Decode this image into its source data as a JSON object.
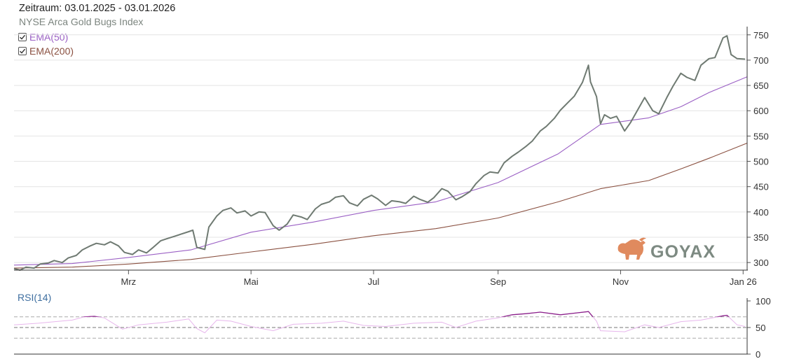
{
  "header": {
    "period": "Zeitraum: 03.01.2025 - 03.01.2026",
    "index_name": "NYSE Arca Gold Bugs Index"
  },
  "legend": [
    {
      "label": "EMA(50)",
      "checked": true,
      "color": "#9a5fc4"
    },
    {
      "label": "EMA(200)",
      "checked": true,
      "color": "#8a5040"
    }
  ],
  "logo": {
    "text": "GOYAX"
  },
  "colors": {
    "price": "#6f7a72",
    "ema50": "#9a5fc4",
    "ema200": "#8a5040",
    "rsi": "#e7b6ec",
    "rsi_strong": "#8a1f8a",
    "logo_text": "#7d8a82",
    "logo_bull": "#e08a5e"
  },
  "chart_data": [
    {
      "type": "line",
      "title": "NYSE Arca Gold Bugs Index",
      "x_range": [
        "2025-01-03",
        "2026-01-03"
      ],
      "x_ticks": [
        {
          "date": "2025-03-01",
          "label": "Mrz"
        },
        {
          "date": "2025-05-01",
          "label": "Mai"
        },
        {
          "date": "2025-07-01",
          "label": "Jul"
        },
        {
          "date": "2025-09-01",
          "label": "Sep"
        },
        {
          "date": "2025-11-01",
          "label": "Nov"
        },
        {
          "date": "2026-01-01",
          "label": "Jan 26"
        }
      ],
      "ylim": [
        285,
        758
      ],
      "y_ticks": [
        300,
        350,
        400,
        450,
        500,
        550,
        600,
        650,
        700,
        750
      ],
      "grid": true,
      "legend": "top-left",
      "series": [
        {
          "name": "NYSE Arca Gold Bugs Index",
          "points": [
            [
              "2025-01-03",
              288
            ],
            [
              "2025-01-06",
              285
            ],
            [
              "2025-01-09",
              291
            ],
            [
              "2025-01-13",
              289
            ],
            [
              "2025-01-16",
              297
            ],
            [
              "2025-01-20",
              299
            ],
            [
              "2025-01-23",
              304
            ],
            [
              "2025-01-27",
              300
            ],
            [
              "2025-01-30",
              309
            ],
            [
              "2025-02-03",
              314
            ],
            [
              "2025-02-06",
              325
            ],
            [
              "2025-02-10",
              333
            ],
            [
              "2025-02-13",
              338
            ],
            [
              "2025-02-17",
              335
            ],
            [
              "2025-02-20",
              341
            ],
            [
              "2025-02-24",
              333
            ],
            [
              "2025-02-27",
              320
            ],
            [
              "2025-03-03",
              316
            ],
            [
              "2025-03-06",
              325
            ],
            [
              "2025-03-10",
              319
            ],
            [
              "2025-03-13",
              329
            ],
            [
              "2025-03-17",
              343
            ],
            [
              "2025-03-20",
              347
            ],
            [
              "2025-03-24",
              352
            ],
            [
              "2025-03-27",
              356
            ],
            [
              "2025-03-31",
              361
            ],
            [
              "2025-04-02",
              364
            ],
            [
              "2025-04-04",
              330
            ],
            [
              "2025-04-08",
              326
            ],
            [
              "2025-04-10",
              370
            ],
            [
              "2025-04-14",
              392
            ],
            [
              "2025-04-17",
              403
            ],
            [
              "2025-04-21",
              408
            ],
            [
              "2025-04-24",
              398
            ],
            [
              "2025-04-28",
              402
            ],
            [
              "2025-05-01",
              392
            ],
            [
              "2025-05-05",
              400
            ],
            [
              "2025-05-08",
              399
            ],
            [
              "2025-05-12",
              373
            ],
            [
              "2025-05-15",
              364
            ],
            [
              "2025-05-19",
              376
            ],
            [
              "2025-05-22",
              394
            ],
            [
              "2025-05-26",
              390
            ],
            [
              "2025-05-29",
              385
            ],
            [
              "2025-06-02",
              406
            ],
            [
              "2025-06-05",
              415
            ],
            [
              "2025-06-09",
              420
            ],
            [
              "2025-06-12",
              429
            ],
            [
              "2025-06-16",
              432
            ],
            [
              "2025-06-19",
              418
            ],
            [
              "2025-06-23",
              412
            ],
            [
              "2025-06-26",
              425
            ],
            [
              "2025-06-30",
              433
            ],
            [
              "2025-07-03",
              426
            ],
            [
              "2025-07-07",
              413
            ],
            [
              "2025-07-10",
              422
            ],
            [
              "2025-07-14",
              420
            ],
            [
              "2025-07-17",
              417
            ],
            [
              "2025-07-21",
              431
            ],
            [
              "2025-07-24",
              425
            ],
            [
              "2025-07-28",
              419
            ],
            [
              "2025-07-31",
              428
            ],
            [
              "2025-08-04",
              446
            ],
            [
              "2025-08-07",
              441
            ],
            [
              "2025-08-11",
              424
            ],
            [
              "2025-08-14",
              430
            ],
            [
              "2025-08-18",
              440
            ],
            [
              "2025-08-21",
              456
            ],
            [
              "2025-08-25",
              472
            ],
            [
              "2025-08-28",
              479
            ],
            [
              "2025-09-01",
              477
            ],
            [
              "2025-09-04",
              497
            ],
            [
              "2025-09-08",
              510
            ],
            [
              "2025-09-11",
              518
            ],
            [
              "2025-09-15",
              530
            ],
            [
              "2025-09-18",
              540
            ],
            [
              "2025-09-22",
              560
            ],
            [
              "2025-09-25",
              569
            ],
            [
              "2025-09-29",
              585
            ],
            [
              "2025-10-02",
              601
            ],
            [
              "2025-10-06",
              617
            ],
            [
              "2025-10-09",
              629
            ],
            [
              "2025-10-13",
              656
            ],
            [
              "2025-10-16",
              690
            ],
            [
              "2025-10-17",
              657
            ],
            [
              "2025-10-20",
              628
            ],
            [
              "2025-10-22",
              574
            ],
            [
              "2025-10-24",
              592
            ],
            [
              "2025-10-27",
              585
            ],
            [
              "2025-10-30",
              589
            ],
            [
              "2025-11-03",
              560
            ],
            [
              "2025-11-06",
              577
            ],
            [
              "2025-11-10",
              605
            ],
            [
              "2025-11-13",
              626
            ],
            [
              "2025-11-17",
              600
            ],
            [
              "2025-11-20",
              594
            ],
            [
              "2025-11-24",
              626
            ],
            [
              "2025-11-27",
              648
            ],
            [
              "2025-12-01",
              674
            ],
            [
              "2025-12-04",
              666
            ],
            [
              "2025-12-08",
              660
            ],
            [
              "2025-12-11",
              690
            ],
            [
              "2025-12-15",
              703
            ],
            [
              "2025-12-18",
              705
            ],
            [
              "2025-12-22",
              744
            ],
            [
              "2025-12-24",
              748
            ],
            [
              "2025-12-26",
              711
            ],
            [
              "2025-12-29",
              703
            ],
            [
              "2026-01-02",
              702
            ]
          ]
        },
        {
          "name": "EMA(50)",
          "points": [
            [
              "2025-01-03",
              295
            ],
            [
              "2025-02-01",
              298
            ],
            [
              "2025-03-01",
              310
            ],
            [
              "2025-04-01",
              325
            ],
            [
              "2025-05-01",
              360
            ],
            [
              "2025-06-01",
              380
            ],
            [
              "2025-07-01",
              403
            ],
            [
              "2025-08-01",
              420
            ],
            [
              "2025-09-01",
              458
            ],
            [
              "2025-10-01",
              515
            ],
            [
              "2025-10-22",
              573
            ],
            [
              "2025-11-15",
              586
            ],
            [
              "2025-12-01",
              608
            ],
            [
              "2025-12-15",
              636
            ],
            [
              "2026-01-03",
              667
            ]
          ]
        },
        {
          "name": "EMA(200)",
          "points": [
            [
              "2025-01-03",
              289
            ],
            [
              "2025-02-01",
              291
            ],
            [
              "2025-03-01",
              297
            ],
            [
              "2025-04-01",
              306
            ],
            [
              "2025-05-01",
              321
            ],
            [
              "2025-06-01",
              336
            ],
            [
              "2025-07-01",
              353
            ],
            [
              "2025-08-01",
              367
            ],
            [
              "2025-09-01",
              388
            ],
            [
              "2025-10-01",
              420
            ],
            [
              "2025-10-22",
              446
            ],
            [
              "2025-11-15",
              462
            ],
            [
              "2025-12-01",
              485
            ],
            [
              "2025-12-15",
              506
            ],
            [
              "2026-01-03",
              536
            ]
          ]
        }
      ]
    },
    {
      "type": "line",
      "title": "RSI(14)",
      "ylim": [
        0,
        100
      ],
      "y_ticks": [
        0,
        50,
        100
      ],
      "reference_lines": [
        30,
        50,
        70
      ],
      "series": [
        {
          "name": "RSI(14)",
          "points": [
            [
              "2025-01-03",
              55
            ],
            [
              "2025-01-15",
              58
            ],
            [
              "2025-02-01",
              64
            ],
            [
              "2025-02-07",
              70
            ],
            [
              "2025-02-12",
              71
            ],
            [
              "2025-02-17",
              68
            ],
            [
              "2025-02-26",
              47
            ],
            [
              "2025-03-06",
              55
            ],
            [
              "2025-03-20",
              60
            ],
            [
              "2025-03-31",
              66
            ],
            [
              "2025-04-04",
              48
            ],
            [
              "2025-04-08",
              40
            ],
            [
              "2025-04-14",
              64
            ],
            [
              "2025-04-21",
              62
            ],
            [
              "2025-05-01",
              52
            ],
            [
              "2025-05-12",
              44
            ],
            [
              "2025-05-22",
              56
            ],
            [
              "2025-06-05",
              58
            ],
            [
              "2025-06-16",
              62
            ],
            [
              "2025-06-26",
              54
            ],
            [
              "2025-07-07",
              52
            ],
            [
              "2025-07-21",
              58
            ],
            [
              "2025-08-04",
              60
            ],
            [
              "2025-08-11",
              50
            ],
            [
              "2025-08-21",
              62
            ],
            [
              "2025-09-01",
              68
            ],
            [
              "2025-09-08",
              74
            ],
            [
              "2025-09-15",
              76
            ],
            [
              "2025-09-22",
              79
            ],
            [
              "2025-10-02",
              74
            ],
            [
              "2025-10-09",
              77
            ],
            [
              "2025-10-16",
              80
            ],
            [
              "2025-10-20",
              62
            ],
            [
              "2025-10-22",
              44
            ],
            [
              "2025-11-03",
              42
            ],
            [
              "2025-11-13",
              55
            ],
            [
              "2025-11-20",
              50
            ],
            [
              "2025-12-01",
              61
            ],
            [
              "2025-12-11",
              64
            ],
            [
              "2025-12-22",
              72
            ],
            [
              "2025-12-24",
              73
            ],
            [
              "2025-12-29",
              55
            ],
            [
              "2026-01-02",
              52
            ]
          ]
        }
      ]
    }
  ]
}
